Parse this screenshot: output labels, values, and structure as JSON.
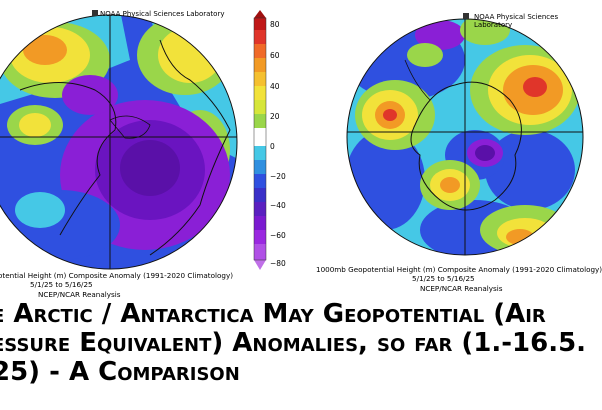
{
  "left_map": {
    "lab_label": "NOAA Physical Sciences Laboratory",
    "caption_line1": "otential Height (m) Composite Anomaly (1991-2020 Climatology)",
    "caption_line2": "5/1/25 to 5/16/25",
    "caption_line3": "NCEP/NCAR Reanalysis"
  },
  "right_map": {
    "lab_label": "NOAA Physical Sciences Laboratory",
    "caption_line1": "1000mb Geopotential Height (m) Composite Anomaly (1991-2020 Climatology)",
    "caption_line2": "5/1/25 to 5/16/25",
    "caption_line3": "NCEP/NCAR Reanalysis"
  },
  "colorbar": {
    "ticks": [
      "80",
      "60",
      "40",
      "20",
      "0",
      "−20",
      "−40",
      "−60",
      "−80"
    ]
  },
  "headline": {
    "line1": "e Arctic / Antarctica May Geopotential (Air",
    "line2": "essure Equivalent) Anomalies, so far (1.-16.5.",
    "line3": "25) - A Comparison"
  },
  "colors": {
    "blue": "#2f50e0",
    "cyan": "#45c8e6",
    "green": "#9ad64a",
    "yellow": "#f2e23a",
    "orange": "#f29a25",
    "red": "#e0352a",
    "purple": "#8a1fd6",
    "violet": "#5a10a8"
  }
}
